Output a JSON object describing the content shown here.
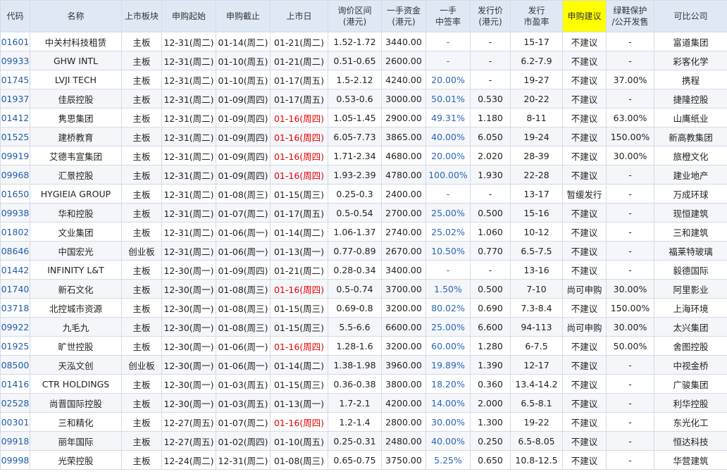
{
  "columns": [
    [
      "代码"
    ],
    [
      "名称"
    ],
    [
      "上市板块"
    ],
    [
      "申购起始"
    ],
    [
      "申购截止"
    ],
    [
      "上市日"
    ],
    [
      "询价区间",
      "(港元)"
    ],
    [
      "一手资金",
      "(港元)"
    ],
    [
      "一手",
      "中签率"
    ],
    [
      "发行价",
      "(港元)"
    ],
    [
      "发行",
      "市盈率"
    ],
    [
      "申购建议"
    ],
    [
      "绿鞋保护",
      "/公开发售"
    ],
    [
      "可比公司"
    ]
  ],
  "highlight_color": "#ffff00",
  "rows": [
    {
      "code": "01601",
      "name": "中关村科技租赁",
      "board": "主板",
      "start": "12-31(周二)",
      "end": "01-14(周二)",
      "listing": "01-21(周二)",
      "listing_red": false,
      "price_range": "1.52-1.72",
      "lot_capital": "3440.00",
      "win_rate": "-",
      "issue_price": "-",
      "pe": "15-17",
      "advice": "不建议",
      "greenshoe": "-",
      "comparable": "富道集团"
    },
    {
      "code": "09933",
      "name": "GHW INTL",
      "board": "主板",
      "start": "12-31(周二)",
      "end": "01-10(周五)",
      "listing": "01-21(周二)",
      "listing_red": false,
      "price_range": "0.51-0.65",
      "lot_capital": "2600.00",
      "win_rate": "-",
      "issue_price": "-",
      "pe": "6.2-7.9",
      "advice": "不建议",
      "greenshoe": "-",
      "comparable": "彩客化学"
    },
    {
      "code": "01745",
      "name": "LVJI TECH",
      "board": "主板",
      "start": "12-31(周二)",
      "end": "01-10(周五)",
      "listing": "01-17(周五)",
      "listing_red": false,
      "price_range": "1.5-2.12",
      "lot_capital": "4240.00",
      "win_rate": "20.00%",
      "issue_price": "-",
      "pe": "19-27",
      "advice": "不建议",
      "greenshoe": "37.00%",
      "comparable": "携程"
    },
    {
      "code": "01937",
      "name": "佳辰控股",
      "board": "主板",
      "start": "12-31(周二)",
      "end": "01-09(周四)",
      "listing": "01-17(周五)",
      "listing_red": false,
      "price_range": "0.53-0.6",
      "lot_capital": "3000.00",
      "win_rate": "50.01%",
      "issue_price": "0.530",
      "pe": "20-22",
      "advice": "不建议",
      "greenshoe": "-",
      "comparable": "捷隆控股"
    },
    {
      "code": "01412",
      "name": "隽思集团",
      "board": "主板",
      "start": "12-31(周二)",
      "end": "01-09(周四)",
      "listing": "01-16(周四)",
      "listing_red": true,
      "price_range": "1.05-1.45",
      "lot_capital": "2900.00",
      "win_rate": "49.31%",
      "issue_price": "1.180",
      "pe": "8-11",
      "advice": "不建议",
      "greenshoe": "63.00%",
      "comparable": "山鹰纸业"
    },
    {
      "code": "01525",
      "name": "建桥教育",
      "board": "主板",
      "start": "12-31(周二)",
      "end": "01-09(周四)",
      "listing": "01-16(周四)",
      "listing_red": true,
      "price_range": "6.05-7.73",
      "lot_capital": "3865.00",
      "win_rate": "40.00%",
      "issue_price": "6.050",
      "pe": "19-24",
      "advice": "不建议",
      "greenshoe": "150.00%",
      "comparable": "新高教集团"
    },
    {
      "code": "09919",
      "name": "艾德韦宣集团",
      "board": "主板",
      "start": "12-31(周二)",
      "end": "01-09(周四)",
      "listing": "01-16(周四)",
      "listing_red": true,
      "price_range": "1.71-2.34",
      "lot_capital": "4680.00",
      "win_rate": "20.00%",
      "issue_price": "2.020",
      "pe": "28-39",
      "advice": "不建议",
      "greenshoe": "30.00%",
      "comparable": "旅橙文化"
    },
    {
      "code": "09968",
      "name": "汇景控股",
      "board": "主板",
      "start": "12-31(周二)",
      "end": "01-09(周四)",
      "listing": "01-16(周四)",
      "listing_red": true,
      "price_range": "1.93-2.39",
      "lot_capital": "4780.00",
      "win_rate": "100.00%",
      "issue_price": "1.930",
      "pe": "22-28",
      "advice": "不建议",
      "greenshoe": "-",
      "comparable": "建业地产"
    },
    {
      "code": "01650",
      "name": "HYGIEIA GROUP",
      "board": "主板",
      "start": "12-31(周二)",
      "end": "01-08(周三)",
      "listing": "01-15(周三)",
      "listing_red": false,
      "price_range": "0.25-0.3",
      "lot_capital": "2400.00",
      "win_rate": "-",
      "issue_price": "-",
      "pe": "13-17",
      "advice": "暂缓发行",
      "greenshoe": "-",
      "comparable": "万成环球"
    },
    {
      "code": "09938",
      "name": "华和控股",
      "board": "主板",
      "start": "12-31(周二)",
      "end": "01-07(周二)",
      "listing": "01-17(周五)",
      "listing_red": false,
      "price_range": "0.5-0.54",
      "lot_capital": "2700.00",
      "win_rate": "25.00%",
      "issue_price": "0.500",
      "pe": "15-16",
      "advice": "不建议",
      "greenshoe": "-",
      "comparable": "现恒建筑"
    },
    {
      "code": "01802",
      "name": "文业集团",
      "board": "主板",
      "start": "12-31(周二)",
      "end": "01-06(周一)",
      "listing": "01-14(周二)",
      "listing_red": false,
      "price_range": "1.06-1.37",
      "lot_capital": "2740.00",
      "win_rate": "25.02%",
      "issue_price": "1.060",
      "pe": "10-12",
      "advice": "不建议",
      "greenshoe": "-",
      "comparable": "三和建筑"
    },
    {
      "code": "08646",
      "name": "中国宏光",
      "board": "创业板",
      "start": "12-31(周二)",
      "end": "01-06(周一)",
      "listing": "01-13(周一)",
      "listing_red": false,
      "price_range": "0.77-0.89",
      "lot_capital": "2670.00",
      "win_rate": "10.50%",
      "issue_price": "0.770",
      "pe": "6.5-7.5",
      "advice": "不建议",
      "greenshoe": "-",
      "comparable": "福莱特玻璃"
    },
    {
      "code": "01442",
      "name": "INFINITY L&T",
      "board": "主板",
      "start": "12-30(周一)",
      "end": "01-09(周四)",
      "listing": "01-21(周二)",
      "listing_red": false,
      "price_range": "0.28-0.34",
      "lot_capital": "3400.00",
      "win_rate": "-",
      "issue_price": "-",
      "pe": "13-16",
      "advice": "不建议",
      "greenshoe": "-",
      "comparable": "毅德国际"
    },
    {
      "code": "01740",
      "name": "新石文化",
      "board": "主板",
      "start": "12-30(周一)",
      "end": "01-08(周三)",
      "listing": "01-16(周四)",
      "listing_red": true,
      "price_range": "0.5-0.74",
      "lot_capital": "3700.00",
      "win_rate": "1.50%",
      "issue_price": "0.500",
      "pe": "7-10",
      "advice": "尚可申购",
      "greenshoe": "30.00%",
      "comparable": "阿里影业"
    },
    {
      "code": "03718",
      "name": "北控城市资源",
      "board": "主板",
      "start": "12-30(周一)",
      "end": "01-08(周三)",
      "listing": "01-15(周三)",
      "listing_red": false,
      "price_range": "0.69-0.8",
      "lot_capital": "3200.00",
      "win_rate": "80.02%",
      "issue_price": "0.690",
      "pe": "7.3-8.4",
      "advice": "不建议",
      "greenshoe": "150.00%",
      "comparable": "上海环境"
    },
    {
      "code": "09922",
      "name": "九毛九",
      "board": "主板",
      "start": "12-30(周一)",
      "end": "01-08(周三)",
      "listing": "01-15(周三)",
      "listing_red": false,
      "price_range": "5.5-6.6",
      "lot_capital": "6600.00",
      "win_rate": "25.00%",
      "issue_price": "6.600",
      "pe": "94-113",
      "advice": "尚可申购",
      "greenshoe": "30.00%",
      "comparable": "太兴集团"
    },
    {
      "code": "01925",
      "name": "旷世控股",
      "board": "主板",
      "start": "12-30(周一)",
      "end": "01-06(周一)",
      "listing": "01-16(周四)",
      "listing_red": true,
      "price_range": "1.28-1.6",
      "lot_capital": "3200.00",
      "win_rate": "60.00%",
      "issue_price": "1.280",
      "pe": "6-7.5",
      "advice": "不建议",
      "greenshoe": "50.00%",
      "comparable": "舍图控股"
    },
    {
      "code": "08500",
      "name": "天泓文创",
      "board": "创业板",
      "start": "12-30(周一)",
      "end": "01-06(周一)",
      "listing": "01-14(周二)",
      "listing_red": false,
      "price_range": "1.38-1.98",
      "lot_capital": "3960.00",
      "win_rate": "19.89%",
      "issue_price": "1.390",
      "pe": "12-17",
      "advice": "不建议",
      "greenshoe": "-",
      "comparable": "中视金桥"
    },
    {
      "code": "01416",
      "name": "CTR HOLDINGS",
      "board": "主板",
      "start": "12-30(周一)",
      "end": "01-03(周五)",
      "listing": "01-15(周三)",
      "listing_red": false,
      "price_range": "0.36-0.38",
      "lot_capital": "3800.00",
      "win_rate": "18.20%",
      "issue_price": "0.360",
      "pe": "13.4-14.2",
      "advice": "不建议",
      "greenshoe": "-",
      "comparable": "广骏集团"
    },
    {
      "code": "02528",
      "name": "尚晋国际控股",
      "board": "主板",
      "start": "12-30(周一)",
      "end": "01-03(周五)",
      "listing": "01-13(周一)",
      "listing_red": false,
      "price_range": "1.7-2.1",
      "lot_capital": "4200.00",
      "win_rate": "14.00%",
      "issue_price": "2.000",
      "pe": "6.5-8.1",
      "advice": "不建议",
      "greenshoe": "-",
      "comparable": "利华控股"
    },
    {
      "code": "00301",
      "name": "三和精化",
      "board": "主板",
      "start": "12-27(周五)",
      "end": "01-07(周二)",
      "listing": "01-16(周四)",
      "listing_red": true,
      "price_range": "1.2-1.4",
      "lot_capital": "2800.00",
      "win_rate": "30.00%",
      "issue_price": "1.300",
      "pe": "19-22",
      "advice": "不建议",
      "greenshoe": "-",
      "comparable": "东光化工"
    },
    {
      "code": "09918",
      "name": "丽年国际",
      "board": "主板",
      "start": "12-27(周五)",
      "end": "01-02(周四)",
      "listing": "01-10(周五)",
      "listing_red": false,
      "price_range": "0.25-0.31",
      "lot_capital": "2480.00",
      "win_rate": "40.00%",
      "issue_price": "0.250",
      "pe": "6.5-8.05",
      "advice": "不建议",
      "greenshoe": "-",
      "comparable": "恒达科技"
    },
    {
      "code": "09998",
      "name": "光荣控股",
      "board": "主板",
      "start": "12-24(周二)",
      "end": "12-31(周二)",
      "listing": "01-08(周三)",
      "listing_red": false,
      "price_range": "0.65-0.75",
      "lot_capital": "3750.00",
      "win_rate": "5.25%",
      "issue_price": "0.650",
      "pe": "10.8-12.5",
      "advice": "不建议",
      "greenshoe": "-",
      "comparable": "华营建筑"
    }
  ]
}
